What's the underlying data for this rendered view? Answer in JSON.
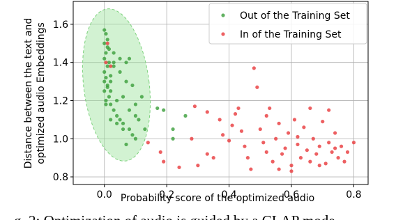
{
  "chart_data": {
    "type": "scatter",
    "xlabel": "Probability score of the optimized audio",
    "ylabel": [
      "Distance between the text and",
      "optimized audio Embeddings"
    ],
    "xlim": [
      -0.1,
      0.846
    ],
    "ylim": [
      0.76,
      1.72
    ],
    "xticks": [
      {
        "value": 0.0,
        "label": "0.0"
      },
      0.2,
      0.4,
      0.6,
      0.8
    ],
    "yticks": [
      0.8,
      {
        "value": 1.0,
        "label": "1.0"
      },
      1.2,
      1.4,
      1.6
    ],
    "grid": true,
    "legend": "upper right",
    "series": [
      {
        "name": "Out of the Training Set",
        "color": "#3a9e3a",
        "x": [
          0.0,
          0.005,
          0.01,
          0.0,
          0.01,
          0.005,
          0.0,
          0.015,
          0.01,
          0.0,
          0.005,
          0.02,
          0.01,
          0.0,
          0.015,
          0.005,
          0.02,
          0.03,
          0.04,
          0.05,
          0.06,
          0.08,
          0.09,
          0.1,
          0.03,
          0.05,
          0.07,
          0.02,
          0.04,
          0.06,
          0.08,
          0.1,
          0.12,
          0.03,
          0.05,
          0.07,
          0.09,
          0.02,
          0.04,
          0.06,
          0.11,
          0.13,
          0.17,
          0.19,
          0.22,
          0.26,
          0.22,
          0.07,
          0.1,
          0.08,
          0.0,
          0.01,
          0.02,
          0.005,
          0.03,
          0.015
        ],
        "values": [
          1.57,
          1.55,
          1.52,
          1.5,
          1.48,
          1.45,
          1.42,
          1.4,
          1.38,
          1.35,
          1.32,
          1.3,
          1.28,
          1.25,
          1.22,
          1.2,
          1.18,
          1.15,
          1.12,
          1.1,
          1.08,
          1.05,
          1.02,
          1.12,
          1.38,
          1.35,
          1.3,
          1.25,
          1.2,
          1.22,
          1.15,
          1.18,
          1.22,
          1.45,
          1.42,
          1.4,
          1.28,
          1.1,
          1.08,
          1.05,
          1.1,
          1.05,
          1.16,
          1.15,
          1.05,
          1.12,
          1.0,
          0.97,
          1.0,
          1.42,
          1.3,
          1.27,
          1.33,
          1.18,
          1.4,
          1.47
        ]
      },
      {
        "name": "In of the Training Set",
        "color": "#e8383b",
        "x": [
          0.005,
          0.02,
          0.01,
          0.18,
          0.19,
          0.24,
          0.14,
          0.29,
          0.28,
          0.3,
          0.33,
          0.37,
          0.38,
          0.41,
          0.42,
          0.44,
          0.45,
          0.46,
          0.48,
          0.49,
          0.5,
          0.51,
          0.52,
          0.53,
          0.54,
          0.55,
          0.56,
          0.57,
          0.58,
          0.59,
          0.6,
          0.61,
          0.62,
          0.63,
          0.64,
          0.65,
          0.66,
          0.67,
          0.68,
          0.69,
          0.7,
          0.71,
          0.72,
          0.73,
          0.74,
          0.75,
          0.76,
          0.77,
          0.78,
          0.8,
          0.4,
          0.35,
          0.47,
          0.6,
          0.66,
          0.72,
          0.43,
          0.56,
          0.69,
          0.62,
          0.74,
          0.52,
          0.33
        ],
        "values": [
          1.4,
          1.38,
          1.5,
          0.93,
          0.88,
          0.85,
          0.98,
          1.17,
          1.0,
          0.86,
          0.92,
          1.1,
          1.02,
          1.07,
          1.13,
          1.04,
          0.96,
          0.9,
          1.37,
          1.27,
          1.05,
          0.98,
          0.93,
          1.16,
          0.88,
          1.0,
          1.08,
          0.92,
          0.95,
          1.03,
          0.86,
          1.1,
          0.97,
          0.9,
          1.06,
          0.94,
          0.88,
          1.0,
          0.92,
          0.96,
          1.09,
          0.87,
          0.98,
          0.93,
          1.03,
          0.9,
          0.96,
          0.88,
          0.93,
          0.98,
          0.99,
          0.9,
          0.84,
          0.83,
          1.16,
          1.15,
          1.16,
          0.84,
          0.86,
          1.01,
          0.95,
          1.12,
          1.14
        ]
      }
    ]
  },
  "caption": "g. 2: Optimization of audio is guided by a CLAP mode"
}
